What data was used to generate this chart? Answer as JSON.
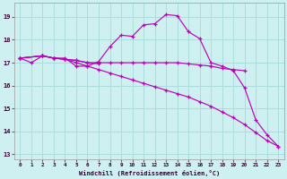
{
  "xlabel": "Windchill (Refroidissement éolien,°C)",
  "xlim": [
    -0.5,
    23.5
  ],
  "ylim": [
    12.8,
    19.6
  ],
  "yticks": [
    13,
    14,
    15,
    16,
    17,
    18,
    19
  ],
  "xticks": [
    0,
    1,
    2,
    3,
    4,
    5,
    6,
    7,
    8,
    9,
    10,
    11,
    12,
    13,
    14,
    15,
    16,
    17,
    18,
    19,
    20,
    21,
    22,
    23
  ],
  "bg_color": "#cff0f0",
  "grid_color": "#aadddd",
  "line_color": "#bb00bb",
  "lines": [
    {
      "x": [
        0,
        1,
        2,
        3,
        4,
        5,
        6,
        7,
        8,
        9,
        10,
        11,
        12,
        13,
        14,
        15,
        16,
        17,
        18,
        19,
        20,
        21,
        22,
        23
      ],
      "y": [
        17.2,
        17.0,
        17.3,
        17.2,
        17.2,
        16.85,
        16.85,
        17.05,
        17.7,
        18.2,
        18.15,
        18.65,
        18.7,
        19.1,
        19.05,
        18.35,
        18.05,
        17.0,
        16.85,
        16.65,
        15.9,
        14.5,
        13.85,
        13.35
      ]
    },
    {
      "x": [
        0,
        2,
        3,
        4,
        5,
        6,
        7,
        8,
        9,
        10,
        11,
        12,
        13,
        14,
        15,
        16,
        17,
        18,
        19,
        20
      ],
      "y": [
        17.2,
        17.3,
        17.2,
        17.15,
        17.1,
        17.0,
        17.0,
        17.0,
        17.0,
        17.0,
        17.0,
        17.0,
        17.0,
        17.0,
        16.95,
        16.9,
        16.85,
        16.75,
        16.7,
        16.65
      ]
    },
    {
      "x": [
        0,
        2,
        3,
        4,
        5,
        6,
        7,
        8,
        9,
        10,
        11,
        12,
        13,
        14,
        15,
        16,
        17,
        18,
        19,
        20,
        21,
        22,
        23
      ],
      "y": [
        17.2,
        17.3,
        17.2,
        17.15,
        17.0,
        16.85,
        16.7,
        16.55,
        16.4,
        16.25,
        16.1,
        15.95,
        15.8,
        15.65,
        15.5,
        15.3,
        15.1,
        14.85,
        14.6,
        14.3,
        13.95,
        13.6,
        13.35
      ]
    },
    {
      "x": [
        0,
        2,
        3,
        4,
        5,
        6,
        7
      ],
      "y": [
        17.2,
        17.3,
        17.2,
        17.15,
        17.1,
        17.0,
        16.95
      ]
    }
  ]
}
